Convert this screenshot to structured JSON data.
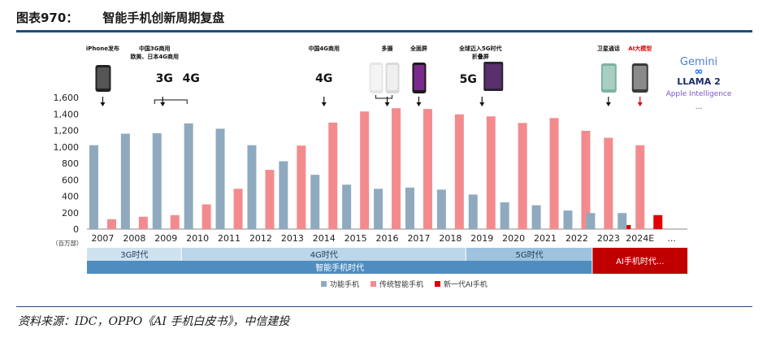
{
  "figure": {
    "label": "图表970：",
    "title": "智能手机创新周期复盘",
    "source": "资料来源：IDC，OPPO《AI 手机白皮书》，中信建投"
  },
  "chart_data": {
    "type": "bar",
    "categories": [
      "2007",
      "2008",
      "2009",
      "2010",
      "2011",
      "2012",
      "2013",
      "2014",
      "2015",
      "2016",
      "2017",
      "2018",
      "2019",
      "2020",
      "2021",
      "2022",
      "2023",
      "2024E",
      "..."
    ],
    "series": [
      {
        "name": "功能手机",
        "color": "#8faabe",
        "values": [
          1020,
          1160,
          1165,
          1285,
          1220,
          1020,
          825,
          660,
          540,
          490,
          505,
          480,
          420,
          325,
          290,
          225,
          195,
          195,
          null
        ]
      },
      {
        "name": "传统智能手机",
        "color": "#f38b8e",
        "values": [
          120,
          150,
          170,
          300,
          490,
          720,
          1015,
          1295,
          1430,
          1470,
          1460,
          1395,
          1370,
          1290,
          1350,
          1195,
          1110,
          1020,
          null
        ]
      },
      {
        "name": "新一代AI手机",
        "color": "#e00000",
        "values": [
          null,
          null,
          null,
          null,
          null,
          null,
          null,
          null,
          null,
          null,
          null,
          null,
          null,
          null,
          null,
          null,
          50,
          170,
          null
        ]
      }
    ],
    "yticks": [
      "0",
      "200",
      "400",
      "600",
      "800",
      "1,000",
      "1,200",
      "1,400",
      "1,600"
    ],
    "ylim": [
      0,
      1600
    ],
    "yunit": "（百万部）",
    "grid": false,
    "legend_position": "bottom",
    "era_bands": [
      {
        "label": "3G时代",
        "from": "2007",
        "to": "2009",
        "color": "#cfe2f0",
        "text_color": "#1f3b57"
      },
      {
        "label": "4G时代",
        "from": "2010",
        "to": "2018",
        "color": "#bcd7ea",
        "text_color": "#1f3b57"
      },
      {
        "label": "5G时代",
        "from": "2019",
        "to": "2022",
        "color": "#9fc3de",
        "text_color": "#1f3b57"
      },
      {
        "label": "智能手机时代",
        "from": "2007",
        "to": "2022",
        "color": "#4f8dc0",
        "text_color": "#ffffff"
      },
      {
        "label": "AI手机时代...",
        "from": "2023",
        "to": "...",
        "color": "#c00000",
        "text_color": "#ffffff"
      }
    ],
    "annotations": [
      {
        "lines": [
          "iPhone发布"
        ],
        "at": "2007",
        "color": "#111111",
        "device": "iphone-icon"
      },
      {
        "lines": [
          "中国3G商用",
          "欧美、日本4G商用"
        ],
        "at": "2009",
        "color": "#111111",
        "badge": [
          "3G",
          "4G"
        ]
      },
      {
        "lines": [
          "中国4G商用"
        ],
        "at": "2014",
        "color": "#111111",
        "badge": [
          "4G"
        ]
      },
      {
        "lines": [
          "多摄"
        ],
        "at": "2016",
        "color": "#111111",
        "device": "multi-camera-phones-icon"
      },
      {
        "lines": [
          "全面屏"
        ],
        "at": "2017",
        "color": "#111111",
        "device": "full-screen-phone-icon"
      },
      {
        "lines": [
          "全球迈入5G时代",
          "折叠屏"
        ],
        "at": "2019",
        "color": "#111111",
        "badge": [
          "5G"
        ],
        "device": "foldable-phone-icon"
      },
      {
        "lines": [
          "卫星通话"
        ],
        "at": "2023",
        "color": "#111111",
        "device": "satellite-phone-icon"
      },
      {
        "lines": [
          "AI大模型"
        ],
        "at": "2024E",
        "color": "#e00000",
        "device": "ai-phone-icon"
      }
    ],
    "ai_models": [
      "Gemini",
      "LLAMA 2",
      "Apple Intelligence",
      "..."
    ]
  }
}
